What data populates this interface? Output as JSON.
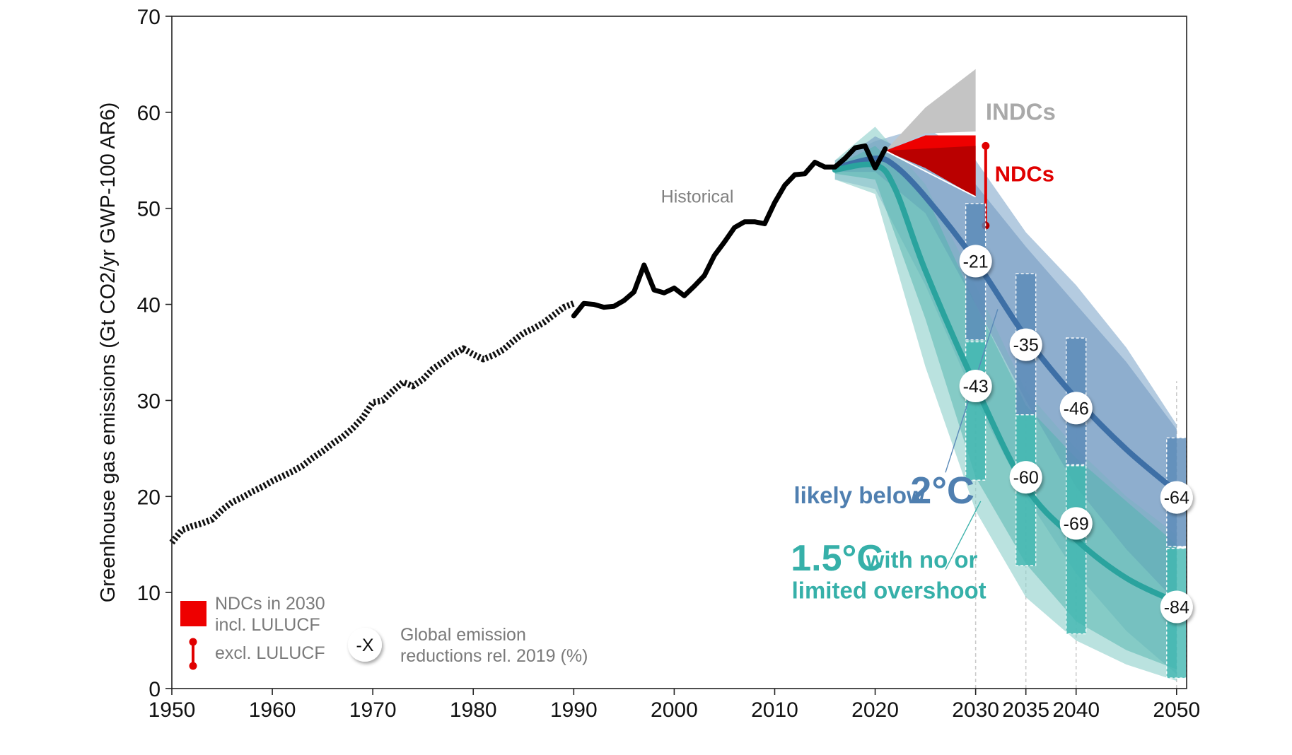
{
  "chart_data": {
    "type": "line",
    "title": "",
    "ylabel": "Greenhouse gas emissions (Gt CO2/yr GWP-100 AR6)",
    "xlabel": "",
    "xlim": [
      1950,
      2051
    ],
    "ylim": [
      0,
      70
    ],
    "x_ticks": [
      {
        "value": 1950,
        "label": "1950"
      },
      {
        "value": 1960,
        "label": "1960"
      },
      {
        "value": 1970,
        "label": "1970"
      },
      {
        "value": 1980,
        "label": "1980"
      },
      {
        "value": 1990,
        "label": "1990"
      },
      {
        "value": 2000,
        "label": "2000"
      },
      {
        "value": 2010,
        "label": "2010"
      },
      {
        "value": 2020,
        "label": "2020"
      },
      {
        "value": 2030,
        "label": "2030"
      },
      {
        "value": 2035,
        "label": "2035"
      },
      {
        "value": 2040,
        "label": "2040"
      },
      {
        "value": 2050,
        "label": "2050"
      }
    ],
    "y_ticks": [
      {
        "value": 0,
        "label": "0"
      },
      {
        "value": 10,
        "label": "10"
      },
      {
        "value": 20,
        "label": "20"
      },
      {
        "value": 30,
        "label": "30"
      },
      {
        "value": 40,
        "label": "40"
      },
      {
        "value": 50,
        "label": "50"
      },
      {
        "value": 60,
        "label": "60"
      },
      {
        "value": 70,
        "label": "70"
      }
    ],
    "historical_label": "Historical",
    "historical_early": {
      "x": [
        1950,
        1951,
        1952,
        1953,
        1954,
        1955,
        1956,
        1957,
        1958,
        1959,
        1960,
        1961,
        1962,
        1963,
        1964,
        1965,
        1966,
        1967,
        1968,
        1969,
        1970,
        1971,
        1972,
        1973,
        1974,
        1975,
        1976,
        1977,
        1978,
        1979,
        1980,
        1981,
        1982,
        1983,
        1984,
        1985,
        1986,
        1987,
        1988,
        1989,
        1990
      ],
      "y": [
        15.2,
        16.5,
        16.9,
        17.2,
        17.6,
        18.6,
        19.4,
        19.9,
        20.5,
        21.0,
        21.6,
        22.1,
        22.6,
        23.2,
        24.0,
        24.7,
        25.5,
        26.2,
        27.1,
        28.2,
        29.8,
        30.0,
        31.0,
        31.9,
        31.5,
        32.2,
        33.3,
        34.0,
        34.8,
        35.4,
        34.8,
        34.3,
        34.7,
        35.3,
        36.2,
        37.0,
        37.5,
        38.1,
        38.9,
        39.7,
        40.1
      ]
    },
    "historical_modern": {
      "x": [
        1990,
        1991,
        1992,
        1993,
        1994,
        1995,
        1996,
        1997,
        1998,
        1999,
        2000,
        2001,
        2002,
        2003,
        2004,
        2005,
        2006,
        2007,
        2008,
        2009,
        2010,
        2011,
        2012,
        2013,
        2014,
        2015,
        2016,
        2017,
        2018,
        2019,
        2020,
        2021
      ],
      "y": [
        38.8,
        40.1,
        40.0,
        39.7,
        39.8,
        40.4,
        41.3,
        44.1,
        41.5,
        41.2,
        41.7,
        40.9,
        41.9,
        43.0,
        45.1,
        46.5,
        48.0,
        48.6,
        48.6,
        48.4,
        50.6,
        52.4,
        53.5,
        53.6,
        54.8,
        54.3,
        54.3,
        55.2,
        56.3,
        56.5,
        54.2,
        56.2
      ]
    },
    "series": [
      {
        "name": "likely below 2°C",
        "color": "#3d6fa6",
        "x": [
          2016,
          2020,
          2022,
          2025,
          2030,
          2035,
          2040,
          2045,
          2050
        ],
        "y": [
          54.2,
          55.2,
          54.4,
          51.2,
          44.5,
          36.6,
          30.2,
          24.9,
          20.5
        ],
        "range_x": [
          2016,
          2020,
          2025,
          2030,
          2035,
          2040,
          2045,
          2050
        ],
        "range_low": [
          53.8,
          53.8,
          49.5,
          40.0,
          30.0,
          21.0,
          14.5,
          9.0
        ],
        "range_high": [
          54.5,
          57.5,
          55.0,
          52.5,
          46.0,
          40.0,
          34.0,
          27.0
        ],
        "band_x": [
          2016,
          2020,
          2025,
          2030,
          2035,
          2040,
          2045,
          2050
        ],
        "band_low": [
          53.0,
          52.0,
          42.0,
          30.0,
          20.0,
          12.0,
          6.0,
          1.5
        ],
        "band_high": [
          55.0,
          57.0,
          58.5,
          55.0,
          47.5,
          42.0,
          35.5,
          27.5
        ],
        "boxes": [
          {
            "x": 2030,
            "low": 36.3,
            "high": 50.5
          },
          {
            "x": 2035,
            "low": 28.5,
            "high": 43.2
          },
          {
            "x": 2040,
            "low": 23.3,
            "high": 36.5
          },
          {
            "x": 2050,
            "low": 14.8,
            "high": 26.1
          }
        ],
        "reductions": [
          {
            "x": 2030,
            "y": 44.5,
            "label": "-21"
          },
          {
            "x": 2035,
            "y": 35.8,
            "label": "-35"
          },
          {
            "x": 2040,
            "y": 29.2,
            "label": "-46"
          },
          {
            "x": 2050,
            "y": 19.9,
            "label": "-64"
          }
        ]
      },
      {
        "name": "1.5°C with no or limited overshoot",
        "color": "#2aa39e",
        "x": [
          2016,
          2020,
          2022,
          2025,
          2030,
          2035,
          2040,
          2045,
          2050
        ],
        "y": [
          54.0,
          54.5,
          52.0,
          43.5,
          31.5,
          21.0,
          15.5,
          11.5,
          9.0
        ],
        "range_x": [
          2016,
          2020,
          2025,
          2030,
          2035,
          2040,
          2045,
          2050
        ],
        "range_low": [
          53.6,
          53.0,
          38.5,
          22.0,
          13.0,
          7.0,
          4.0,
          2.0
        ],
        "range_high": [
          54.4,
          56.5,
          51.5,
          40.0,
          29.5,
          24.0,
          19.5,
          15.0
        ],
        "band_x": [
          2016,
          2020,
          2025,
          2030,
          2035,
          2040,
          2045,
          2050
        ],
        "band_low": [
          53.0,
          51.5,
          33.5,
          18.5,
          9.5,
          5.0,
          2.5,
          0.8
        ],
        "band_high": [
          55.0,
          58.5,
          52.5,
          42.0,
          31.0,
          25.0,
          20.0,
          16.0
        ],
        "boxes": [
          {
            "x": 2030,
            "low": 21.7,
            "high": 36.1
          },
          {
            "x": 2035,
            "low": 12.8,
            "high": 28.5
          },
          {
            "x": 2040,
            "low": 5.7,
            "high": 23.2
          },
          {
            "x": 2050,
            "low": 1.1,
            "high": 14.6
          }
        ],
        "reductions": [
          {
            "x": 2030,
            "y": 31.5,
            "label": "-43"
          },
          {
            "x": 2035,
            "y": 22.0,
            "label": "-60"
          },
          {
            "x": 2040,
            "y": 17.2,
            "label": "-69"
          },
          {
            "x": 2050,
            "y": 8.5,
            "label": "-84"
          }
        ]
      }
    ],
    "indcs": {
      "label": "INDCs",
      "color": "#c4c4c4",
      "x": [
        2021,
        2025,
        2030,
        2030,
        2025,
        2021
      ],
      "y": [
        56.0,
        60.5,
        64.5,
        58.0,
        57.8,
        56.0
      ]
    },
    "ndcs": {
      "label": "NDCs",
      "color": "#ee0000",
      "dark_color": "#b00000",
      "x": [
        2021,
        2025,
        2030,
        2030,
        2025,
        2021
      ],
      "y": [
        56.0,
        57.6,
        57.6,
        51.2,
        54.2,
        56.0
      ],
      "excl_lulucf": {
        "x": 2031,
        "low": 48.2,
        "high": 56.5
      }
    },
    "annotations": {
      "likely_below_2c": [
        "likely below",
        "2°C"
      ],
      "one_point_five": [
        "1.5°C",
        "with no or",
        "limited overshoot"
      ]
    },
    "legend": {
      "ndc_range_line1": "NDCs in 2030",
      "ndc_range_line2": "incl. LULUCF",
      "ndc_excl": "excl. LULUCF",
      "reduction_symbol": "-X",
      "reduction_line1": "Global emission",
      "reduction_line2": "reductions rel. 2019 (%)",
      "position": "bottom-left"
    },
    "grid": false
  }
}
